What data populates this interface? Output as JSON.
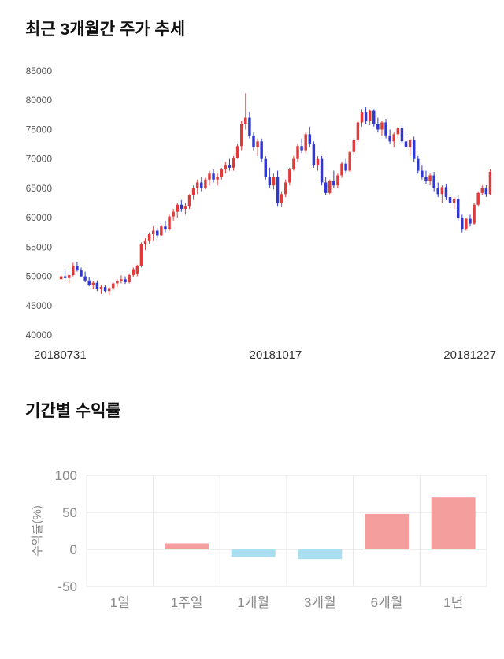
{
  "chart_data": [
    {
      "type": "candlestick",
      "title": "최근 3개월간 주가 추세",
      "ylim": [
        40000,
        85000
      ],
      "yticks": [
        85000,
        80000,
        75000,
        70000,
        65000,
        60000,
        55000,
        50000,
        45000,
        40000
      ],
      "xtick_labels": [
        "20180731",
        "20181017",
        "20181227"
      ],
      "grid": false,
      "legend": "none",
      "colors": {
        "up": "#e03a3a",
        "down": "#3038cf"
      },
      "candles": [
        [
          49500,
          50500,
          49000,
          50000
        ],
        [
          50000,
          51000,
          49500,
          49700
        ],
        [
          49700,
          50300,
          48800,
          50200
        ],
        [
          50200,
          52300,
          50000,
          51800
        ],
        [
          51800,
          52500,
          50800,
          51000
        ],
        [
          51000,
          51500,
          49800,
          50000
        ],
        [
          50000,
          50800,
          49000,
          49300
        ],
        [
          49300,
          49800,
          48300,
          48500
        ],
        [
          48500,
          49200,
          47800,
          48900
        ],
        [
          48900,
          49300,
          47500,
          47800
        ],
        [
          47800,
          48500,
          47000,
          48200
        ],
        [
          48200,
          48600,
          47200,
          47500
        ],
        [
          47500,
          48200,
          46800,
          48000
        ],
        [
          48000,
          49000,
          47600,
          48800
        ],
        [
          48800,
          49500,
          48200,
          49200
        ],
        [
          49200,
          50200,
          48800,
          49500
        ],
        [
          49500,
          50000,
          48700,
          49000
        ],
        [
          49000,
          50500,
          48800,
          50200
        ],
        [
          50200,
          51500,
          49800,
          51200
        ],
        [
          50500,
          52000,
          50000,
          51800
        ],
        [
          51800,
          55800,
          51500,
          55500
        ],
        [
          55500,
          56500,
          54500,
          56000
        ],
        [
          56000,
          57500,
          55500,
          57200
        ],
        [
          57200,
          58500,
          56000,
          57800
        ],
        [
          57800,
          58200,
          56500,
          57000
        ],
        [
          57000,
          58800,
          56800,
          58500
        ],
        [
          58500,
          59500,
          57500,
          58000
        ],
        [
          58000,
          60500,
          57800,
          60200
        ],
        [
          60200,
          61500,
          59500,
          61000
        ],
        [
          61000,
          62500,
          60000,
          62200
        ],
        [
          62200,
          63000,
          61000,
          61500
        ],
        [
          61500,
          62500,
          60500,
          62000
        ],
        [
          62000,
          64000,
          61500,
          63800
        ],
        [
          63800,
          65500,
          63000,
          65000
        ],
        [
          65000,
          66500,
          64000,
          66000
        ],
        [
          66000,
          67000,
          64500,
          65000
        ],
        [
          65000,
          66800,
          64800,
          66500
        ],
        [
          66500,
          68000,
          65500,
          67500
        ],
        [
          67500,
          68200,
          66000,
          66500
        ],
        [
          66500,
          67500,
          65500,
          67000
        ],
        [
          67000,
          68500,
          66500,
          68200
        ],
        [
          68200,
          69500,
          67500,
          69000
        ],
        [
          69000,
          70000,
          68000,
          68500
        ],
        [
          68500,
          70500,
          68000,
          70200
        ],
        [
          70200,
          72500,
          70000,
          72200
        ],
        [
          72200,
          76500,
          71500,
          76000
        ],
        [
          76000,
          81200,
          75000,
          77000
        ],
        [
          77000,
          78000,
          73500,
          74000
        ],
        [
          74000,
          74500,
          71500,
          72000
        ],
        [
          72000,
          73500,
          70500,
          73000
        ],
        [
          73000,
          73500,
          69500,
          70000
        ],
        [
          70000,
          70500,
          66500,
          67000
        ],
        [
          67000,
          68500,
          65000,
          65500
        ],
        [
          65500,
          67500,
          64800,
          67000
        ],
        [
          67000,
          68000,
          62000,
          62500
        ],
        [
          62500,
          64500,
          61800,
          64000
        ],
        [
          64000,
          66500,
          63500,
          66000
        ],
        [
          66000,
          68500,
          65500,
          68200
        ],
        [
          68200,
          70500,
          68000,
          70000
        ],
        [
          70000,
          72500,
          69500,
          72200
        ],
        [
          72200,
          73500,
          71000,
          71500
        ],
        [
          71500,
          74500,
          71000,
          74200
        ],
        [
          74200,
          75500,
          72000,
          72500
        ],
        [
          72500,
          73000,
          68500,
          69000
        ],
        [
          69000,
          70500,
          68000,
          70000
        ],
        [
          70000,
          70500,
          65500,
          66000
        ],
        [
          66000,
          67000,
          63800,
          64200
        ],
        [
          64200,
          66500,
          64000,
          66200
        ],
        [
          66200,
          68000,
          65000,
          65500
        ],
        [
          65500,
          67500,
          65000,
          67200
        ],
        [
          67200,
          69500,
          66800,
          69200
        ],
        [
          69200,
          70000,
          67500,
          68000
        ],
        [
          68000,
          71500,
          67800,
          71200
        ],
        [
          71200,
          73500,
          70800,
          73200
        ],
        [
          73200,
          76500,
          73000,
          76200
        ],
        [
          76200,
          78500,
          75500,
          78000
        ],
        [
          78000,
          78800,
          76000,
          76500
        ],
        [
          76500,
          78500,
          75800,
          78200
        ],
        [
          78200,
          78500,
          75500,
          76000
        ],
        [
          76000,
          77000,
          74500,
          75000
        ],
        [
          75000,
          76500,
          74000,
          76200
        ],
        [
          76200,
          76800,
          73500,
          74000
        ],
        [
          74000,
          75000,
          72500,
          73000
        ],
        [
          73000,
          74500,
          72000,
          74200
        ],
        [
          74200,
          75500,
          73500,
          75200
        ],
        [
          75200,
          75800,
          72500,
          73000
        ],
        [
          73000,
          74000,
          71500,
          72000
        ],
        [
          72000,
          73500,
          70500,
          73200
        ],
        [
          73200,
          73800,
          69500,
          70000
        ],
        [
          70000,
          70500,
          67500,
          68000
        ],
        [
          68000,
          69000,
          66500,
          67000
        ],
        [
          67000,
          68000,
          65800,
          66300
        ],
        [
          66300,
          67500,
          65500,
          67200
        ],
        [
          67200,
          67800,
          64500,
          65000
        ],
        [
          65000,
          66000,
          63500,
          64000
        ],
        [
          64000,
          65500,
          62500,
          65200
        ],
        [
          65200,
          65800,
          63000,
          63500
        ],
        [
          63500,
          64500,
          62000,
          62500
        ],
        [
          62500,
          63500,
          61500,
          63200
        ],
        [
          63200,
          63800,
          59500,
          60000
        ],
        [
          60000,
          60500,
          57500,
          58000
        ],
        [
          58000,
          60000,
          57800,
          59800
        ],
        [
          59800,
          60500,
          58500,
          59000
        ],
        [
          59000,
          62500,
          58800,
          62200
        ],
        [
          62200,
          64500,
          62000,
          64200
        ],
        [
          64200,
          65500,
          63800,
          65000
        ],
        [
          65000,
          65500,
          63500,
          64000
        ],
        [
          64000,
          68200,
          63800,
          67800
        ]
      ]
    },
    {
      "type": "bar",
      "title": "기간별 수익률",
      "ylabel": "수익률(%)",
      "categories": [
        "1일",
        "1주일",
        "1개월",
        "3개월",
        "6개월",
        "1년"
      ],
      "values": [
        0,
        8,
        -10,
        -13,
        48,
        70
      ],
      "ylim": [
        -50,
        100
      ],
      "yticks": [
        100,
        50,
        0,
        -50
      ],
      "grid": true,
      "legend": "none",
      "colors": {
        "positive": "#f59e9e",
        "negative": "#a9dff0",
        "grid": "#dcdcdc",
        "vgrid": "#e5e5e5",
        "text": "#8a8a8a"
      }
    }
  ]
}
